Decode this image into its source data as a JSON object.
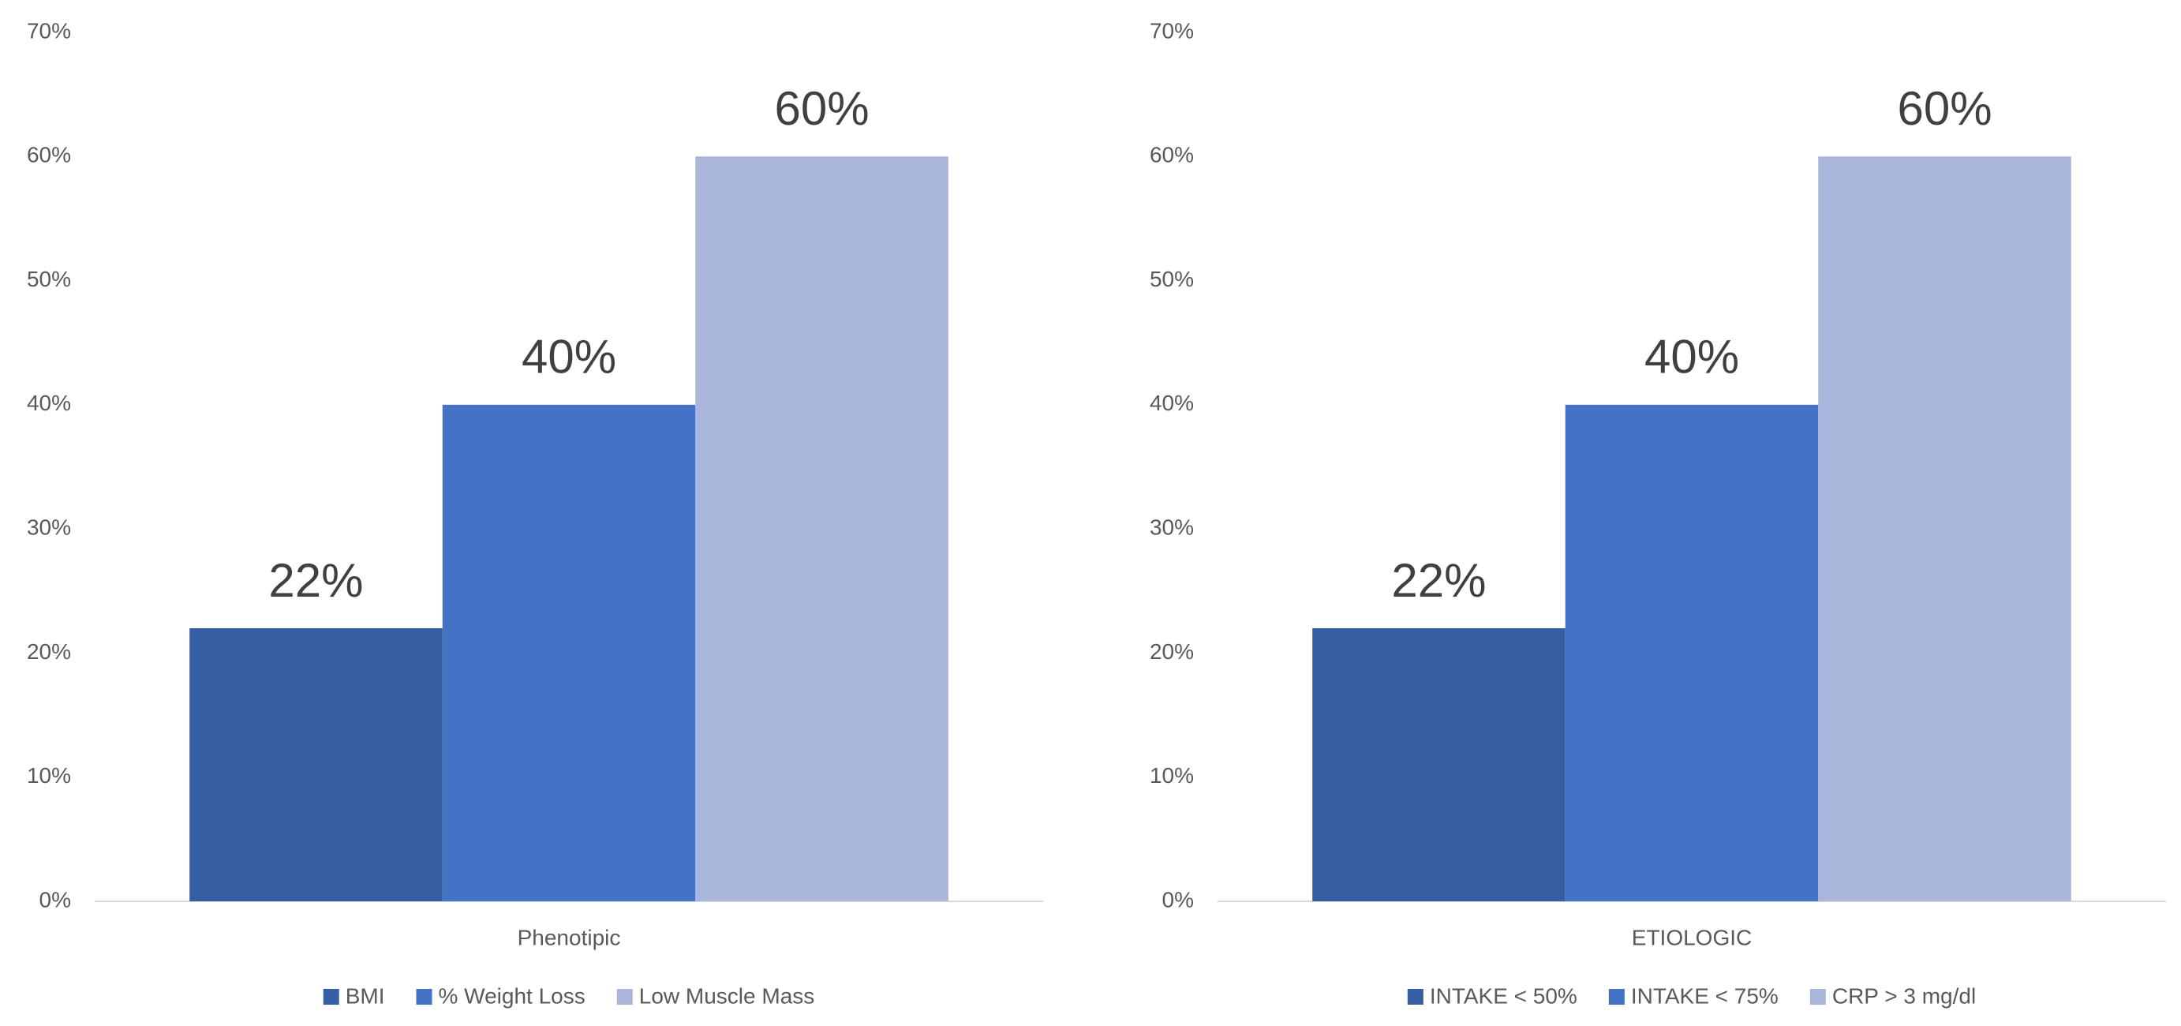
{
  "chart_data": [
    {
      "type": "bar",
      "categories": [
        "Phenotipic"
      ],
      "series": [
        {
          "name": "BMI",
          "color": "#355ea3",
          "values": [
            22
          ],
          "value_labels": [
            "22%"
          ]
        },
        {
          "name": "% Weight Loss",
          "color": "#4472c4",
          "values": [
            40
          ],
          "value_labels": [
            "40%"
          ]
        },
        {
          "name": "Low Muscle Mass",
          "color": "#a9b5da",
          "values": [
            60
          ],
          "value_labels": [
            "60%"
          ]
        }
      ],
      "ylim": [
        0,
        70
      ],
      "yticks": [
        {
          "value": 0,
          "label": "0%"
        },
        {
          "value": 10,
          "label": "10%"
        },
        {
          "value": 20,
          "label": "20%"
        },
        {
          "value": 30,
          "label": "30%"
        },
        {
          "value": 40,
          "label": "40%"
        },
        {
          "value": 50,
          "label": "50%"
        },
        {
          "value": 60,
          "label": "60%"
        },
        {
          "value": 70,
          "label": "70%"
        }
      ],
      "grid": false,
      "legend": "bottom"
    },
    {
      "type": "bar",
      "categories": [
        "ETIOLOGIC"
      ],
      "series": [
        {
          "name": "INTAKE < 50%",
          "color": "#355ea3",
          "values": [
            22
          ],
          "value_labels": [
            "22%"
          ]
        },
        {
          "name": "INTAKE < 75%",
          "color": "#4472c4",
          "values": [
            40
          ],
          "value_labels": [
            "40%"
          ]
        },
        {
          "name": "CRP > 3 mg/dl",
          "color": "#a9b5da",
          "values": [
            60
          ],
          "value_labels": [
            "60%"
          ]
        }
      ],
      "ylim": [
        0,
        70
      ],
      "yticks": [
        {
          "value": 0,
          "label": "0%"
        },
        {
          "value": 10,
          "label": "10%"
        },
        {
          "value": 20,
          "label": "20%"
        },
        {
          "value": 30,
          "label": "30%"
        },
        {
          "value": 40,
          "label": "40%"
        },
        {
          "value": 50,
          "label": "50%"
        },
        {
          "value": 60,
          "label": "60%"
        },
        {
          "value": 70,
          "label": "70%"
        }
      ],
      "grid": false,
      "legend": "bottom"
    }
  ]
}
